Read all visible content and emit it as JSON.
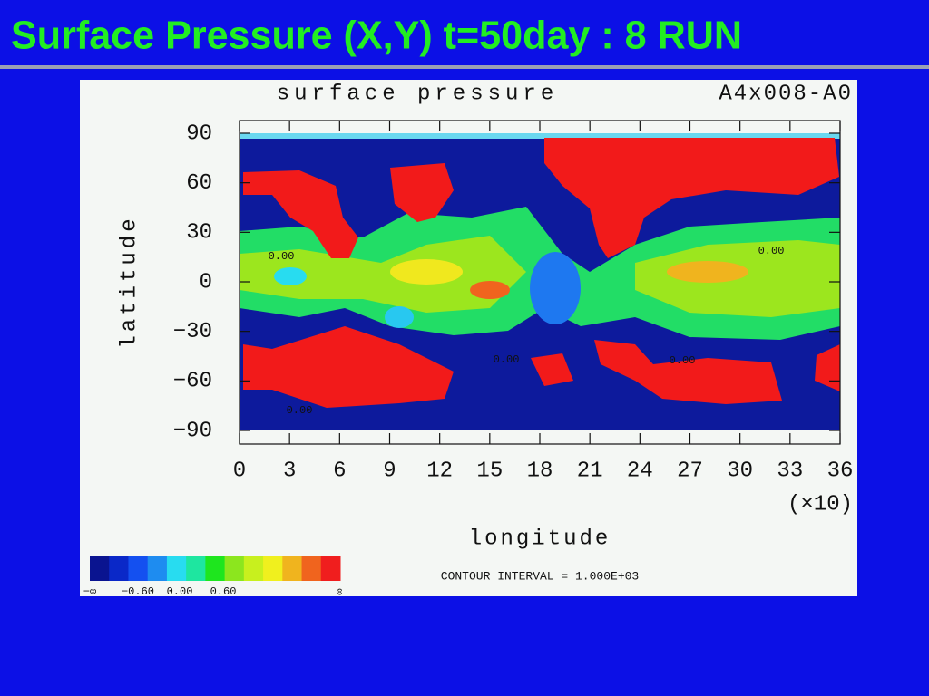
{
  "slide_title": "Surface Pressure (X,Y) t=50day : 8 RUN",
  "chart_data": {
    "type": "contour",
    "title": "surface pressure",
    "run_id": "A4x008-A0",
    "xlabel": "longitude",
    "x_multiplier": "(×10)",
    "ylabel": "latitude",
    "xlim": [
      0,
      36
    ],
    "xticks": [
      0,
      3,
      6,
      9,
      12,
      15,
      18,
      21,
      24,
      27,
      30,
      33,
      36
    ],
    "ylim": [
      -90,
      90
    ],
    "yticks": [
      {
        "value": -90,
        "label": "−90"
      },
      {
        "value": -60,
        "label": "−60"
      },
      {
        "value": -30,
        "label": "−30"
      },
      0,
      30,
      60,
      90
    ],
    "contour_labels": [
      "0.00",
      "0.00",
      "0.00",
      "0.00",
      "0.00"
    ],
    "colorbar": {
      "colors": [
        "#0a1490",
        "#0a28c8",
        "#1450f0",
        "#1e8cf0",
        "#28dcf0",
        "#1ee6a0",
        "#1ee61e",
        "#8ce61e",
        "#c8f01e",
        "#f0f01e",
        "#f0b41e",
        "#f0641e",
        "#f01e1e"
      ],
      "labels": [
        "−∞",
        "−0.60",
        "0.00",
        "0.60",
        "∞"
      ]
    },
    "contour_interval": "CONTOUR INTERVAL = 1.000E+03"
  }
}
